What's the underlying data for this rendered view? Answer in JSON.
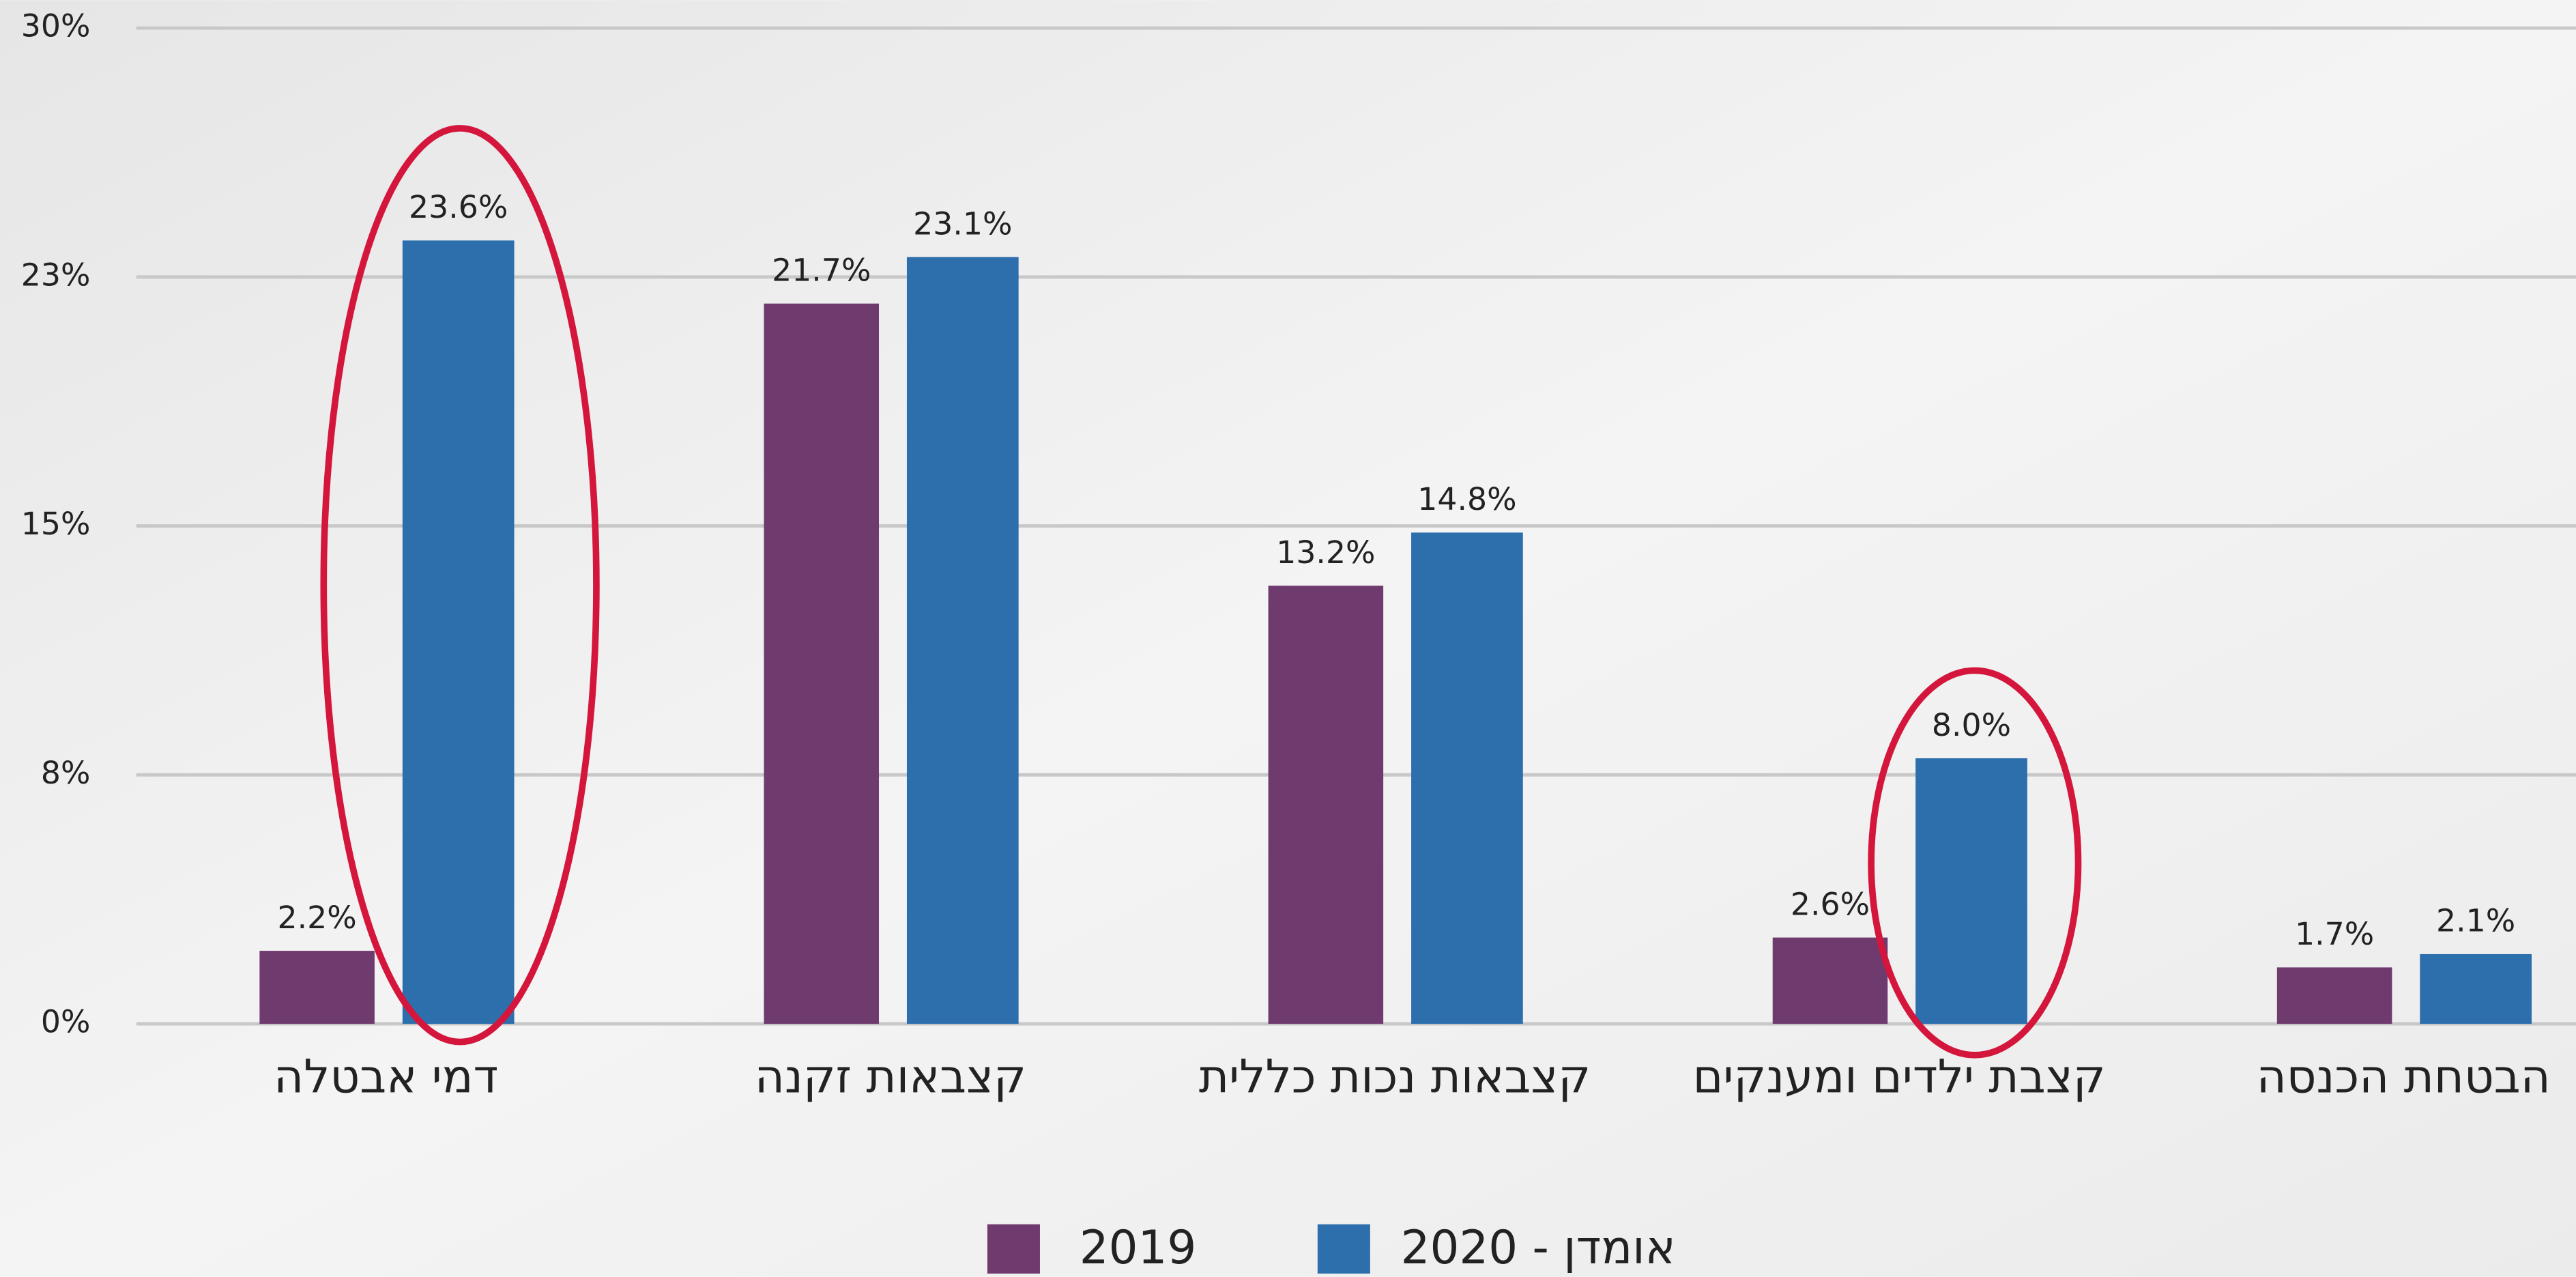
{
  "chart_data": {
    "type": "bar",
    "categories": [
      "דמי אבטלה",
      "קצבאות זקנה",
      "קצבאות נכות כללית",
      "קצבת ילדים ומענקים",
      "הבטחת הכנסה"
    ],
    "series": [
      {
        "name": "2019",
        "color": "#6f3a6e",
        "values": [
          2.2,
          21.7,
          13.2,
          2.6,
          1.7
        ],
        "value_labels": [
          "2.2%",
          "21.7%",
          "13.2%",
          "2.6%",
          "1.7%"
        ]
      },
      {
        "name": "אומדן - 2020",
        "color": "#2d6fad",
        "values": [
          23.6,
          23.1,
          14.8,
          8.0,
          2.1
        ],
        "value_labels": [
          "23.6%",
          "23.1%",
          "14.8%",
          "8.0%",
          "2.1%"
        ]
      }
    ],
    "ylim": [
      0,
      30
    ],
    "yticks": [
      {
        "value": 0,
        "label": "0%"
      },
      {
        "value": 7.5,
        "label": "8%"
      },
      {
        "value": 15,
        "label": "15%"
      },
      {
        "value": 22.5,
        "label": "23%"
      },
      {
        "value": 30,
        "label": "30%"
      }
    ],
    "grid": true,
    "legend": "bottom"
  }
}
